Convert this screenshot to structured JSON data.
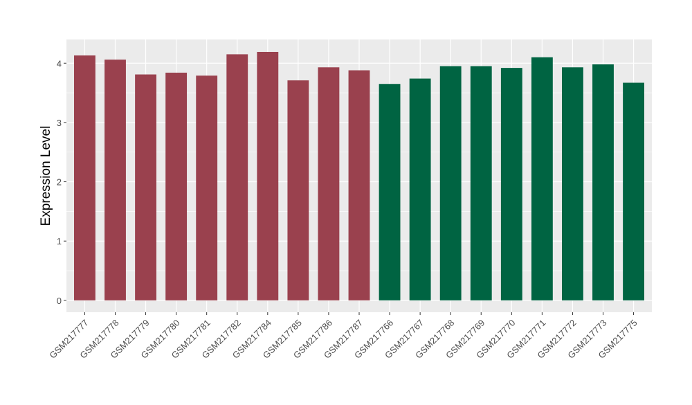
{
  "chart_data": {
    "type": "bar",
    "title": "",
    "xlabel": "",
    "ylabel": "Expression Level",
    "ylim": [
      -0.2,
      4.4
    ],
    "yticks": [
      0,
      1,
      2,
      3,
      4
    ],
    "grid": true,
    "legend": "none",
    "categories": [
      "GSM217777",
      "GSM217778",
      "GSM217779",
      "GSM217780",
      "GSM217781",
      "GSM217782",
      "GSM217784",
      "GSM217785",
      "GSM217786",
      "GSM217787",
      "GSM217766",
      "GSM217767",
      "GSM217768",
      "GSM217769",
      "GSM217770",
      "GSM217771",
      "GSM217772",
      "GSM217773",
      "GSM217775"
    ],
    "values": [
      4.13,
      4.06,
      3.81,
      3.84,
      3.79,
      4.15,
      4.19,
      3.71,
      3.93,
      3.88,
      3.65,
      3.74,
      3.95,
      3.95,
      3.92,
      4.1,
      3.93,
      3.98,
      3.67
    ],
    "group_of_bar": [
      0,
      0,
      0,
      0,
      0,
      0,
      0,
      0,
      0,
      0,
      1,
      1,
      1,
      1,
      1,
      1,
      1,
      1,
      1
    ],
    "group_colors": [
      "#9a414e",
      "#006442"
    ],
    "panel_background": "#ebebeb",
    "grid_color": "#ffffff"
  }
}
